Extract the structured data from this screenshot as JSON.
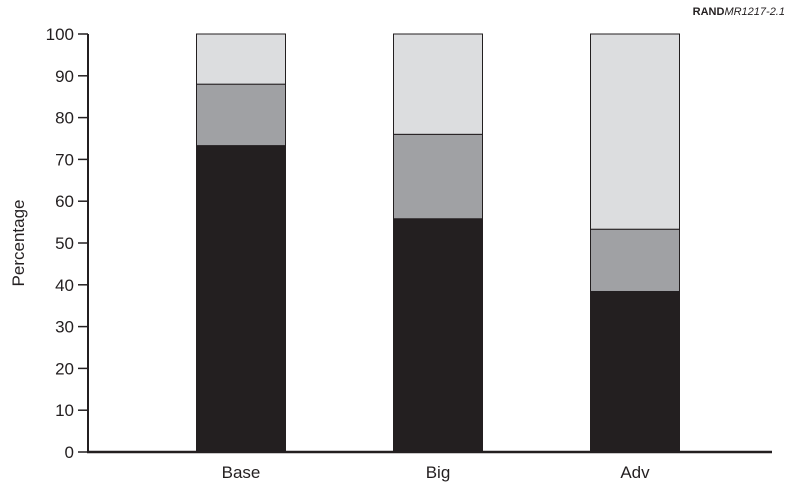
{
  "source_tag": {
    "org": "RAND",
    "doc_id": "MR1217-2.1"
  },
  "chart_data": {
    "type": "bar",
    "stacked": true,
    "categories": [
      "Base",
      "Big",
      "Adv"
    ],
    "series": [
      {
        "values": [
          73.3,
          55.8,
          38.4
        ],
        "color": "#231f20"
      },
      {
        "values": [
          14.7,
          20.2,
          14.9
        ],
        "color": "#a0a1a4"
      },
      {
        "values": [
          12.0,
          24.0,
          46.7
        ],
        "color": "#dcdddf"
      }
    ],
    "ylabel": "Percentage",
    "xlabel": "",
    "ylim": [
      0,
      100
    ],
    "yticks": [
      0,
      10,
      20,
      30,
      40,
      50,
      60,
      70,
      80,
      90,
      100
    ],
    "grid": false,
    "legend": "none"
  }
}
